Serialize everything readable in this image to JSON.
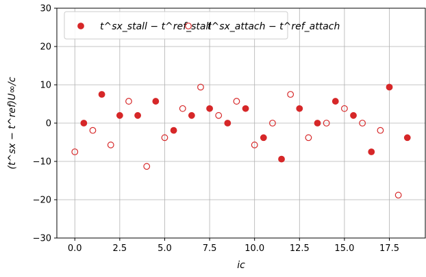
{
  "chart_data": {
    "type": "scatter",
    "title": "",
    "xlabel": "ic",
    "ylabel": "(t^sx − t^ref)U∞/c",
    "xlim": [
      -1,
      19.5
    ],
    "ylim": [
      -30,
      30
    ],
    "xticks": [
      0.0,
      2.5,
      5.0,
      7.5,
      10.0,
      12.5,
      15.0,
      17.5
    ],
    "xtick_labels": [
      "0.0",
      "2.5",
      "5.0",
      "7.5",
      "10.0",
      "12.5",
      "15.0",
      "17.5"
    ],
    "yticks": [
      -30,
      -20,
      -10,
      0,
      10,
      20,
      30
    ],
    "ytick_labels": [
      "−30",
      "−20",
      "−10",
      "0",
      "10",
      "20",
      "30"
    ],
    "grid": true,
    "legend_position": "top-left",
    "color": "#d62728",
    "series": [
      {
        "name": "t^sx_stall − t^ref_stall",
        "marker": "filled-circle",
        "x": [
          0.5,
          1.5,
          2.5,
          3.5,
          4.5,
          5.5,
          6.5,
          7.5,
          8.5,
          9.5,
          10.5,
          11.5,
          12.5,
          13.5,
          14.5,
          15.5,
          16.5,
          17.5,
          18.5
        ],
        "y": [
          0,
          7.5,
          2,
          2,
          5.7,
          -1.9,
          2,
          3.8,
          0,
          3.8,
          -3.8,
          -9.4,
          3.8,
          0,
          5.7,
          2,
          -7.5,
          9.4,
          -3.8
        ]
      },
      {
        "name": "t^sx_attach − t^ref_attach",
        "marker": "open-circle",
        "x": [
          0,
          1,
          2,
          3,
          4,
          5,
          6,
          7,
          8,
          9,
          10,
          11,
          12,
          13,
          14,
          15,
          16,
          17,
          18
        ],
        "y": [
          -7.5,
          -1.9,
          -5.7,
          5.7,
          -11.3,
          -3.8,
          3.8,
          9.4,
          2,
          5.7,
          -5.7,
          0,
          7.5,
          -3.8,
          0,
          3.8,
          0,
          -1.9,
          -18.8
        ]
      }
    ]
  }
}
